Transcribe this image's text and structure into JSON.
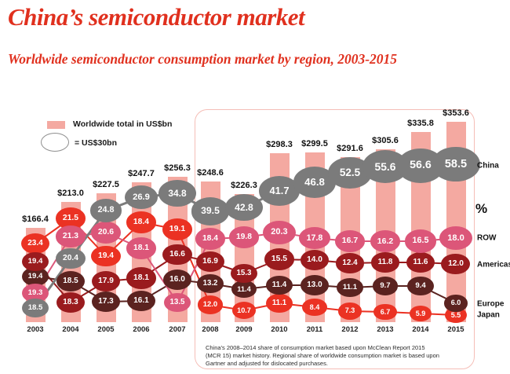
{
  "title": "China’s semiconductor market",
  "subtitle": "Worldwide semiconductor consumption market by region, 2003-2015",
  "legend": {
    "bar_label": "Worldwide total in US$bn",
    "bubble_label": "= US$30bn"
  },
  "footnote": "China's 2008–2014 share of consumption market based upon McClean Report 2015 (MCR 15) market history. Regional share of worldwide consumption market is based upon Gartner and adjusted for dislocated purchases.",
  "colors": {
    "title": "#e0301e",
    "bar": "#f4a9a1",
    "box_border": "#f5beb7",
    "ellipse_outline": "#8f8f8f",
    "label_text": "#111111"
  },
  "chart_data": {
    "type": "bar",
    "subtype": "bar totals with bubble bump-lines of regional % share; bubble area scaled so one legend ellipse = US$30bn",
    "value_unit": "%",
    "currency_prefix": "$",
    "years": [
      2003,
      2004,
      2005,
      2006,
      2007,
      2008,
      2009,
      2010,
      2011,
      2012,
      2013,
      2014,
      2015
    ],
    "totals": [
      166.4,
      213.0,
      227.5,
      247.7,
      256.3,
      248.6,
      226.3,
      298.3,
      299.5,
      291.6,
      305.6,
      335.8,
      353.6
    ],
    "highlight_box_years": [
      2008,
      2015
    ],
    "series": [
      {
        "name": "China",
        "color": "#7b7b7b",
        "values": [
          18.5,
          20.4,
          24.8,
          26.9,
          34.8,
          39.5,
          42.8,
          41.7,
          46.8,
          52.5,
          55.6,
          56.6,
          58.5
        ]
      },
      {
        "name": "ROW",
        "color": "#dc5679",
        "values": [
          19.3,
          21.3,
          20.6,
          18.1,
          13.5,
          18.4,
          19.8,
          20.3,
          17.8,
          16.7,
          16.2,
          16.5,
          18.0
        ]
      },
      {
        "name": "Americas",
        "color": "#9a1b1e",
        "values": [
          19.4,
          18.3,
          17.9,
          18.1,
          16.6,
          16.9,
          15.3,
          15.5,
          14.0,
          12.4,
          11.8,
          11.6,
          12.0
        ]
      },
      {
        "name": "Europe",
        "color": "#5b2320",
        "values": [
          19.4,
          18.5,
          17.3,
          16.1,
          16.0,
          13.2,
          11.4,
          11.4,
          13.0,
          11.1,
          9.7,
          9.4,
          6.0
        ]
      },
      {
        "name": "Japan",
        "color": "#eb3223",
        "values": [
          23.4,
          21.5,
          19.4,
          18.4,
          19.1,
          12.0,
          10.7,
          11.1,
          8.4,
          7.3,
          6.7,
          5.9,
          5.5
        ]
      }
    ]
  }
}
